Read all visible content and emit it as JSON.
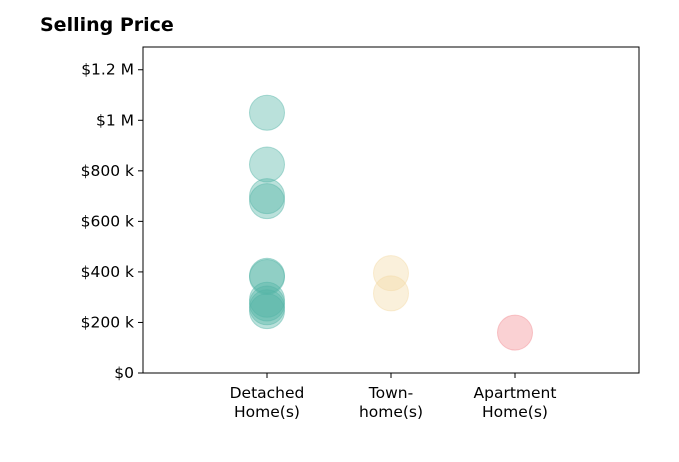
{
  "chart_data": {
    "type": "scatter",
    "title": "Selling Price",
    "xlabel": "",
    "ylabel": "",
    "categories": [
      [
        "Detached",
        "Home(s)"
      ],
      [
        "Town-",
        "home(s)"
      ],
      [
        "Apartment",
        "Home(s)"
      ]
    ],
    "y_ticks": [
      {
        "value": 0,
        "label": "$0"
      },
      {
        "value": 200000,
        "label": "$200 k"
      },
      {
        "value": 400000,
        "label": "$400 k"
      },
      {
        "value": 600000,
        "label": "$600 k"
      },
      {
        "value": 800000,
        "label": "$800 k"
      },
      {
        "value": 1000000,
        "label": "$1 M"
      },
      {
        "value": 1200000,
        "label": "$1.2 M"
      }
    ],
    "ylim": [
      0,
      1290000
    ],
    "xlim": [
      -1,
      3
    ],
    "grid": false,
    "series": [
      {
        "category_index": 0,
        "color": "#52b3a6",
        "values": [
          1030000,
          825000,
          700000,
          680000,
          385000,
          380000,
          290000,
          275000,
          260000,
          245000
        ]
      },
      {
        "category_index": 1,
        "color": "#f3d9a4",
        "values": [
          395000,
          315000
        ]
      },
      {
        "category_index": 2,
        "color": "#f28b92",
        "values": [
          160000
        ]
      }
    ]
  }
}
